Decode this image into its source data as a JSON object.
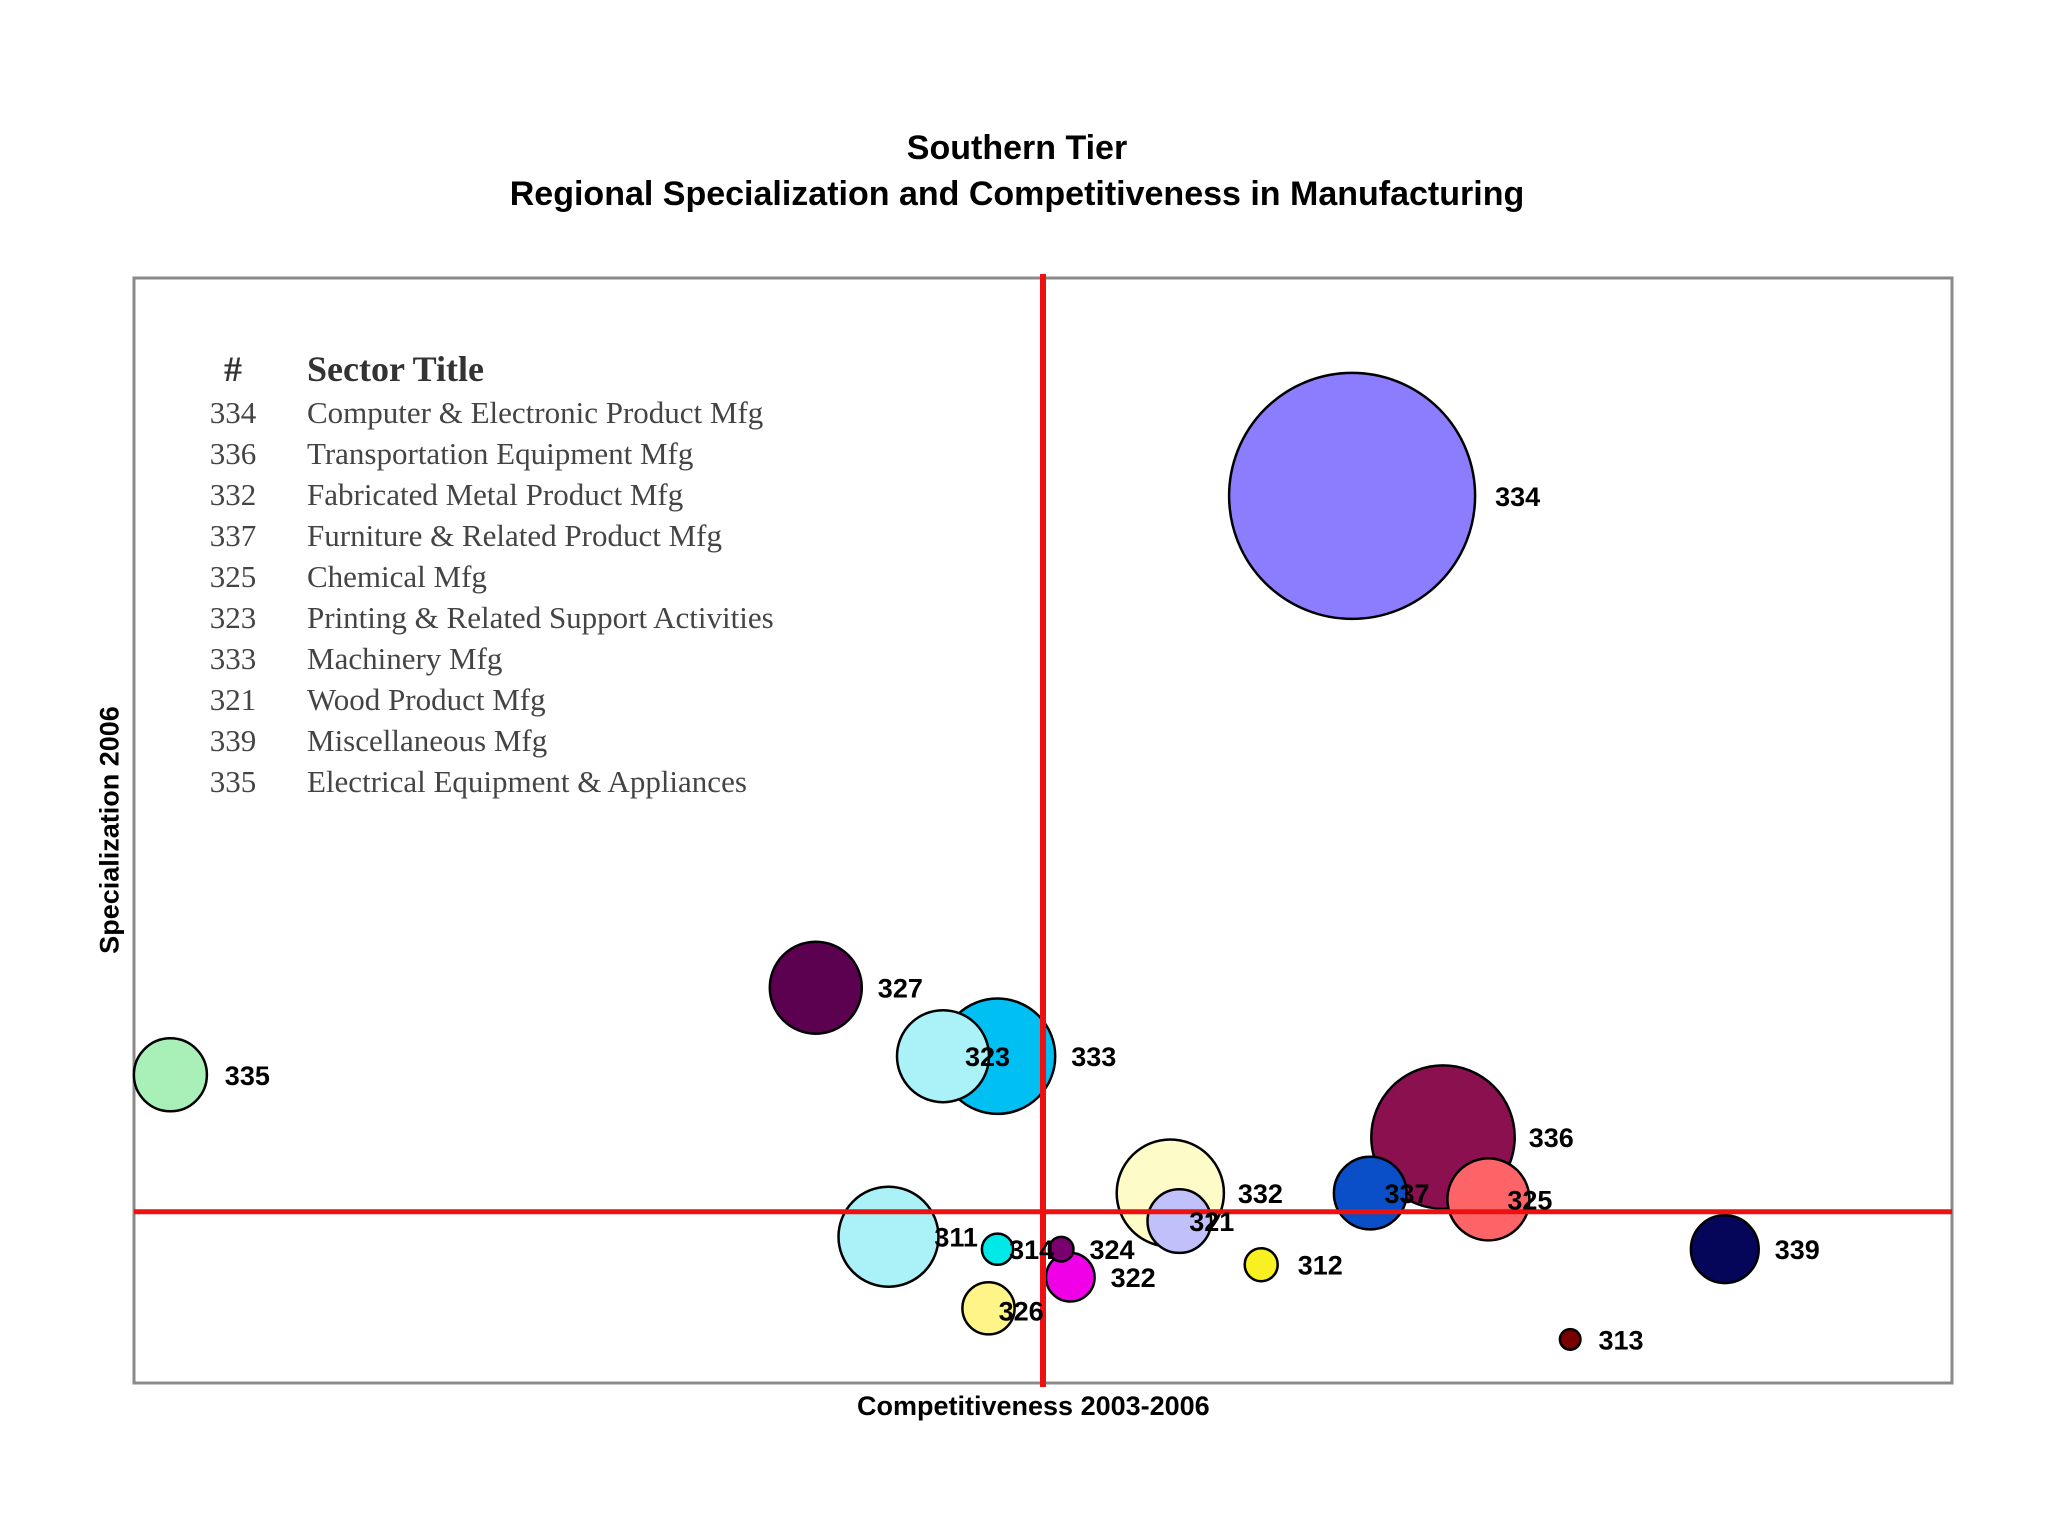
{
  "chart_data": {
    "type": "bubble",
    "title": "Southern Tier",
    "subtitle": "Regional Specialization and Competitiveness in Manufacturing",
    "xlabel": "Competitiveness 2003-2006",
    "ylabel": "Specialization 2006",
    "xlim": [
      -1.0,
      1.0
    ],
    "ylim": [
      -0.55,
      3.0
    ],
    "grid": false,
    "reference_lines": {
      "x": 0,
      "y": 0
    },
    "legend": {
      "position": "top-left",
      "header_code": "#",
      "header_title": "Sector Title",
      "rows": [
        {
          "code": "334",
          "title": "Computer & Electronic Product Mfg"
        },
        {
          "code": "336",
          "title": "Transportation Equipment Mfg"
        },
        {
          "code": "332",
          "title": "Fabricated Metal Product Mfg"
        },
        {
          "code": "337",
          "title": "Furniture & Related Product Mfg"
        },
        {
          "code": "325",
          "title": "Chemical Mfg"
        },
        {
          "code": "323",
          "title": "Printing & Related Support Activities"
        },
        {
          "code": "333",
          "title": "Machinery Mfg"
        },
        {
          "code": "321",
          "title": "Wood Product Mfg"
        },
        {
          "code": "339",
          "title": "Miscellaneous Mfg"
        },
        {
          "code": "335",
          "title": "Electrical Equipment & Appliances"
        }
      ]
    },
    "points": [
      {
        "label": "334",
        "x": 0.34,
        "y": 2.3,
        "size": 100,
        "color": "#8C7DFF"
      },
      {
        "label": "336",
        "x": 0.44,
        "y": 0.24,
        "size": 34,
        "color": "#8B1050"
      },
      {
        "label": "333",
        "x": -0.05,
        "y": 0.5,
        "size": 22,
        "color": "#00BFF3"
      },
      {
        "label": "323",
        "x": -0.11,
        "y": 0.5,
        "size": 14,
        "color": "#AAF2F7"
      },
      {
        "label": "327",
        "x": -0.25,
        "y": 0.72,
        "size": 14,
        "color": "#5C0050"
      },
      {
        "label": "335",
        "x": -0.96,
        "y": 0.44,
        "size": 8.8,
        "color": "#A8F0B8"
      },
      {
        "label": "332",
        "x": 0.14,
        "y": 0.06,
        "size": 19,
        "color": "#FDFBC8"
      },
      {
        "label": "321",
        "x": 0.15,
        "y": -0.03,
        "size": 6.7,
        "color": "#C0C0FA"
      },
      {
        "label": "337",
        "x": 0.36,
        "y": 0.06,
        "size": 8.7,
        "color": "#0A4FC8"
      },
      {
        "label": "325",
        "x": 0.49,
        "y": 0.04,
        "size": 11.1,
        "color": "#FC6468"
      },
      {
        "label": "339",
        "x": 0.75,
        "y": -0.12,
        "size": 7.6,
        "color": "#05055A"
      },
      {
        "label": "311",
        "x": -0.17,
        "y": -0.08,
        "size": 16.5,
        "color": "#AAF2F7"
      },
      {
        "label": "314",
        "x": -0.05,
        "y": -0.12,
        "size": 1.6,
        "color": "#00E8E8"
      },
      {
        "label": "324",
        "x": 0.02,
        "y": -0.12,
        "size": 1.0,
        "color": "#7A0070"
      },
      {
        "label": "322",
        "x": 0.03,
        "y": -0.21,
        "size": 3.9,
        "color": "#F000E6"
      },
      {
        "label": "326",
        "x": -0.06,
        "y": -0.31,
        "size": 4.5,
        "color": "#FFF488"
      },
      {
        "label": "312",
        "x": 0.24,
        "y": -0.17,
        "size": 1.8,
        "color": "#F8F020"
      },
      {
        "label": "313",
        "x": 0.58,
        "y": -0.41,
        "size": 0.7,
        "color": "#7A0000"
      }
    ]
  }
}
